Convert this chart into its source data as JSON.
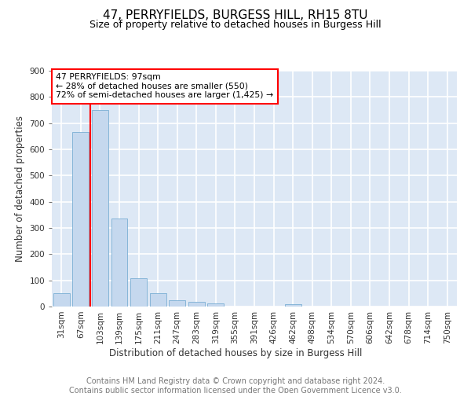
{
  "title": "47, PERRYFIELDS, BURGESS HILL, RH15 8TU",
  "subtitle": "Size of property relative to detached houses in Burgess Hill",
  "xlabel": "Distribution of detached houses by size in Burgess Hill",
  "ylabel": "Number of detached properties",
  "footer_line1": "Contains HM Land Registry data © Crown copyright and database right 2024.",
  "footer_line2": "Contains public sector information licensed under the Open Government Licence v3.0.",
  "bar_labels": [
    "31sqm",
    "67sqm",
    "103sqm",
    "139sqm",
    "175sqm",
    "211sqm",
    "247sqm",
    "283sqm",
    "319sqm",
    "355sqm",
    "391sqm",
    "426sqm",
    "462sqm",
    "498sqm",
    "534sqm",
    "570sqm",
    "606sqm",
    "642sqm",
    "678sqm",
    "714sqm",
    "750sqm"
  ],
  "bar_values": [
    50,
    665,
    750,
    337,
    108,
    50,
    25,
    17,
    13,
    0,
    0,
    0,
    10,
    0,
    0,
    0,
    0,
    0,
    0,
    0,
    0
  ],
  "bar_color": "#c5d8ee",
  "bar_edge_color": "#7aafd4",
  "highlight_color": "red",
  "annotation_title": "47 PERRYFIELDS: 97sqm",
  "annotation_line1": "← 28% of detached houses are smaller (550)",
  "annotation_line2": "72% of semi-detached houses are larger (1,425) →",
  "annotation_box_color": "white",
  "annotation_box_edge_color": "red",
  "ylim": [
    0,
    900
  ],
  "yticks": [
    0,
    100,
    200,
    300,
    400,
    500,
    600,
    700,
    800,
    900
  ],
  "bg_color": "#dde8f5",
  "grid_color": "white",
  "title_fontsize": 11,
  "subtitle_fontsize": 9,
  "axis_fontsize": 8.5,
  "tick_fontsize": 7.5,
  "footer_fontsize": 7
}
